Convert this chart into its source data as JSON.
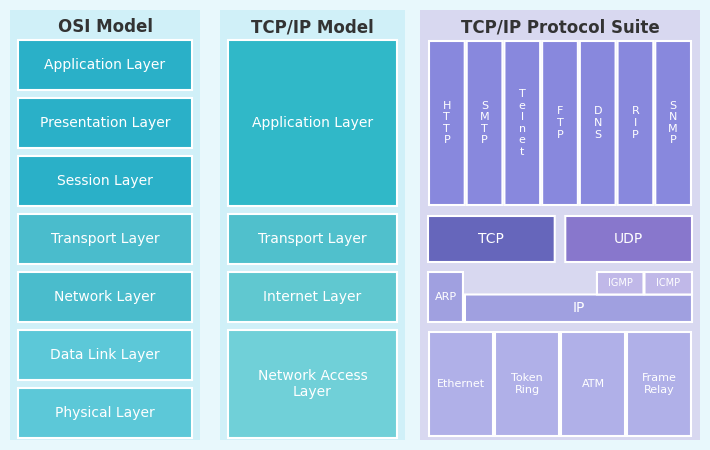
{
  "bg_color": "#e8f8fc",
  "osi_bg": "#d0f0f8",
  "tcp_model_bg": "#d0f0f8",
  "tcp_suite_bg": "#d8d8f0",
  "title_fontsize": 12,
  "layer_fontsize": 10,
  "proto_fontsize": 9,
  "osi_title": "OSI Model",
  "tcp_model_title": "TCP/IP Model",
  "tcp_suite_title": "TCP/IP Protocol Suite",
  "osi_layers": [
    "Application Layer",
    "Presentation Layer",
    "Session Layer",
    "Transport Layer",
    "Network Layer",
    "Data Link Layer",
    "Physical Layer"
  ],
  "osi_colors": [
    "#2ab0c8",
    "#2ab0c8",
    "#2ab0c8",
    "#4abccc",
    "#4abccc",
    "#5cc8d8",
    "#5cc8d8"
  ],
  "tcp_model_layers": [
    {
      "label": "Application Layer",
      "rows": 3
    },
    {
      "label": "Transport Layer",
      "rows": 1
    },
    {
      "label": "Internet Layer",
      "rows": 1
    },
    {
      "label": "Network Access\nLayer",
      "rows": 2
    }
  ],
  "tcp_model_colors": [
    "#30b8c8",
    "#50c0cc",
    "#60c8d0",
    "#70d0d8"
  ],
  "app_protocols": [
    "H\nT\nT\nP",
    "S\nM\nT\nP",
    "T\ne\nl\nn\ne\nt",
    "F\nT\nP",
    "D\nN\nS",
    "R\nI\nP",
    "S\nN\nM\nP"
  ],
  "app_proto_color": "#8888dd",
  "transport_protos": [
    "TCP",
    "UDP"
  ],
  "transport_proto_colors": [
    "#6666bb",
    "#8877cc"
  ],
  "internet_protos_top": [
    "IGMP",
    "ICMP"
  ],
  "internet_proto_main": "IP",
  "internet_proto_arp": "ARP",
  "internet_proto_color": "#a0a0e0",
  "internet_proto_top_color": "#c0b8e8",
  "network_protos": [
    "Ethernet",
    "Token\nRing",
    "ATM",
    "Frame\nRelay"
  ],
  "network_proto_color": "#b0b0e8"
}
